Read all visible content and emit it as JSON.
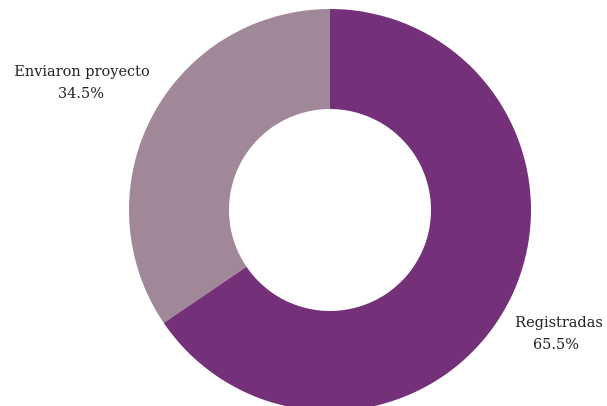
{
  "chart_data": {
    "type": "pie",
    "donut": true,
    "title": "",
    "slices": [
      {
        "label": "Registradas",
        "value": 65.5,
        "value_label": "65.5%",
        "color": "#74317a"
      },
      {
        "label": "Enviaron proyecto",
        "value": 34.5,
        "value_label": "34.5%",
        "color": "#a08899"
      }
    ],
    "legend": "none"
  }
}
